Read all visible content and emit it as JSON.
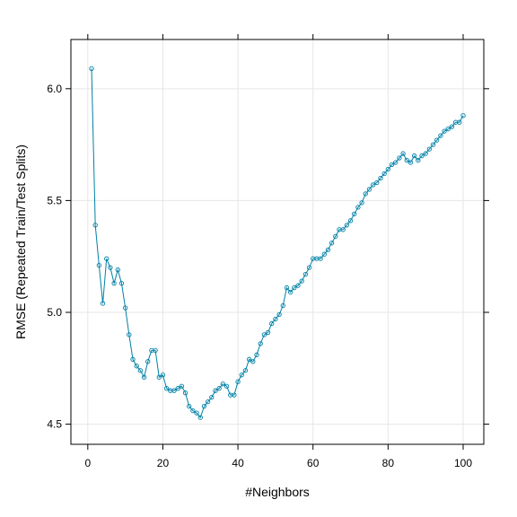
{
  "chart_data": {
    "type": "line",
    "title": "",
    "xlabel": "#Neighbors",
    "ylabel": "RMSE (Repeated Train/Test Splits)",
    "xlim": [
      -4.5,
      105.5
    ],
    "ylim": [
      4.41,
      6.22
    ],
    "xticks": [
      0,
      20,
      40,
      60,
      80,
      100
    ],
    "xtick_labels": [
      "0",
      "20",
      "40",
      "60",
      "80",
      "100"
    ],
    "yticks": [
      4.5,
      5.0,
      5.5,
      6.0
    ],
    "ytick_labels": [
      "4.5",
      "5.0",
      "5.5",
      "6.0"
    ],
    "grid": true,
    "legend": "none",
    "line_color": "#0080a6",
    "marker": "open-circle",
    "series": [
      {
        "x": [
          1,
          2,
          3,
          4,
          5,
          6,
          7,
          8,
          9,
          10,
          11,
          12,
          13,
          14,
          15,
          16,
          17,
          18,
          19,
          20,
          21,
          22,
          23,
          24,
          25,
          26,
          27,
          28,
          29,
          30,
          31,
          32,
          33,
          34,
          35,
          36,
          37,
          38,
          39,
          40,
          41,
          42,
          43,
          44,
          45,
          46,
          47,
          48,
          49,
          50,
          51,
          52,
          53,
          54,
          55,
          56,
          57,
          58,
          59,
          60,
          61,
          62,
          63,
          64,
          65,
          66,
          67,
          68,
          69,
          70,
          71,
          72,
          73,
          74,
          75,
          76,
          77,
          78,
          79,
          80,
          81,
          82,
          83,
          84,
          85,
          86,
          87,
          88,
          89,
          90,
          91,
          92,
          93,
          94,
          95,
          96,
          97,
          98,
          99,
          100
        ],
        "values": [
          6.09,
          5.39,
          5.21,
          5.04,
          5.24,
          5.2,
          5.13,
          5.19,
          5.13,
          5.02,
          4.9,
          4.79,
          4.76,
          4.74,
          4.71,
          4.78,
          4.83,
          4.83,
          4.71,
          4.72,
          4.66,
          4.65,
          4.65,
          4.66,
          4.67,
          4.64,
          4.58,
          4.56,
          4.55,
          4.53,
          4.58,
          4.6,
          4.62,
          4.65,
          4.66,
          4.68,
          4.67,
          4.63,
          4.63,
          4.69,
          4.72,
          4.74,
          4.79,
          4.78,
          4.81,
          4.86,
          4.9,
          4.91,
          4.95,
          4.97,
          4.99,
          5.03,
          5.11,
          5.09,
          5.11,
          5.12,
          5.14,
          5.17,
          5.2,
          5.24,
          5.24,
          5.24,
          5.26,
          5.28,
          5.31,
          5.34,
          5.37,
          5.37,
          5.39,
          5.41,
          5.44,
          5.47,
          5.49,
          5.53,
          5.55,
          5.57,
          5.58,
          5.6,
          5.62,
          5.64,
          5.66,
          5.67,
          5.69,
          5.71,
          5.68,
          5.67,
          5.7,
          5.68,
          5.7,
          5.71,
          5.73,
          5.75,
          5.77,
          5.79,
          5.81,
          5.82,
          5.83,
          5.85,
          5.85,
          5.88
        ]
      }
    ]
  }
}
